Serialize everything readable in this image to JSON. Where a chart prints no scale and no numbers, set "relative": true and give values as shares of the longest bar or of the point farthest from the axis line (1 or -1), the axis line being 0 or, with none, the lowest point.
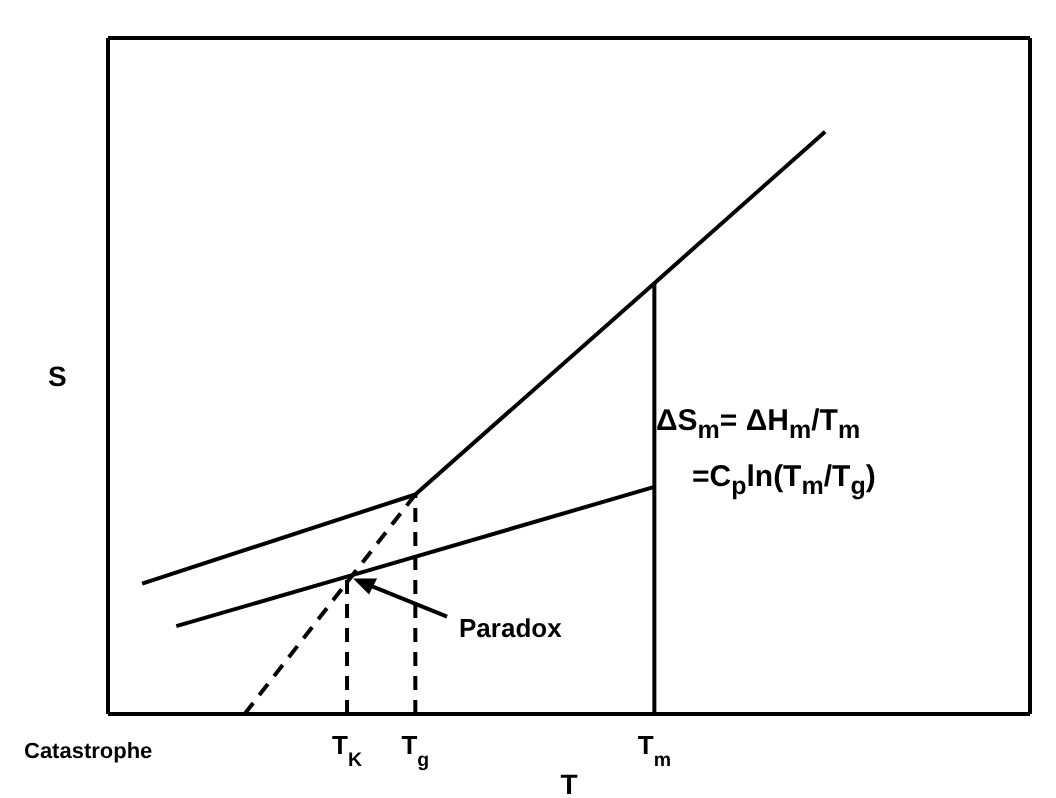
{
  "chart_data": {
    "type": "line",
    "relative": true,
    "xlabel": "T",
    "ylabel": "S",
    "legend": false,
    "grid": false,
    "marker": "none",
    "categories": [
      null,
      null,
      null,
      null,
      null,
      null,
      null,
      "T$_{K}$",
      null,
      "T$_{g}$",
      null,
      null,
      null,
      null,
      null,
      null,
      "T$_{m}$",
      null,
      null,
      null,
      null,
      null,
      null,
      null,
      null,
      null,
      null,
      null
    ],
    "series": [
      {
        "color": "#000000",
        "line_style": "solid",
        "values": [
          null,
          0.224,
          null,
          null,
          null,
          null,
          null,
          null,
          null,
          0.377,
          null,
          null,
          null,
          null,
          null,
          null,
          0.74,
          null,
          null,
          null,
          null,
          1,
          null,
          null,
          null,
          null,
          null,
          null
        ]
      },
      {
        "color": "#000000",
        "line_style": "solid",
        "values": [
          null,
          null,
          0.151,
          null,
          null,
          null,
          null,
          0.236,
          null,
          null,
          null,
          null,
          null,
          null,
          null,
          null,
          0.39,
          null,
          null,
          null,
          null,
          null,
          null,
          null,
          null,
          null,
          null,
          null
        ]
      },
      {
        "color": "#000000",
        "line_style": "dashed",
        "values": [
          null,
          null,
          null,
          null,
          0,
          null,
          null,
          null,
          null,
          0.377,
          null,
          null,
          null,
          null,
          null,
          null,
          null,
          null,
          null,
          null,
          null,
          null,
          null,
          null,
          null,
          null,
          null,
          null
        ]
      }
    ],
    "ref_lines": [
      {
        "axis": "x",
        "value": "T$_{K}$",
        "line_style": "dashed",
        "color": "#000000"
      },
      {
        "axis": "x",
        "value": "T$_{g}$",
        "line_style": "dashed",
        "color": "#000000"
      },
      {
        "axis": "x",
        "value": "T$_{m}$",
        "line_style": "solid",
        "color": "#000000"
      }
    ],
    "annotations": [
      {
        "text": "Paradox",
        "x": "T$_{K}$",
        "y": 0.236
      },
      "Catastrophe",
      "ΔS$_{m}$= ΔH$_{m}$/T$_{m}$",
      "=C$_{p}$ln(T$_{m}$/T$_{g}$)"
    ]
  }
}
